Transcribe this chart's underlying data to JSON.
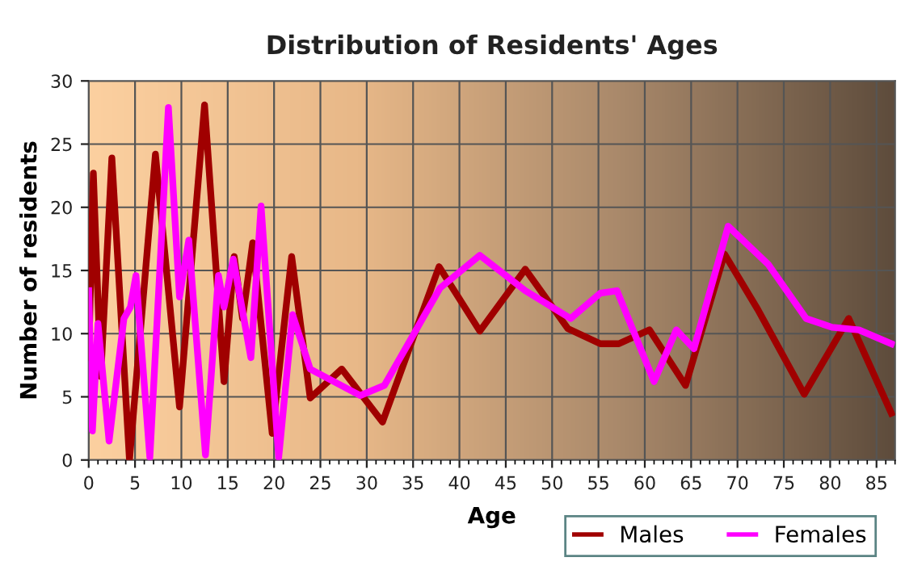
{
  "chart_data": {
    "type": "line",
    "title": "Distribution of Residents' Ages",
    "xlabel": "Age",
    "ylabel": "Number of residents",
    "xlim": [
      0,
      87
    ],
    "xticks": [
      0,
      5,
      10,
      15,
      20,
      25,
      30,
      35,
      40,
      45,
      50,
      55,
      60,
      65,
      70,
      75,
      80,
      85
    ],
    "ylim": [
      0,
      30
    ],
    "yticks": [
      0,
      5,
      10,
      15,
      20,
      25,
      30
    ],
    "grid": true,
    "legend": "bottom right",
    "marker": "none",
    "line_style": "solid",
    "series": [
      {
        "name": "Males",
        "color": "#a00000",
        "x": [
          0,
          0.5,
          1.3,
          2.5,
          4.4,
          7.2,
          9.8,
          12.5,
          14.6,
          15.7,
          16.6,
          17.7,
          19.8,
          21.9,
          23.9,
          27.3,
          31.7,
          37.8,
          42.2,
          47.1,
          51.7,
          55.2,
          57.2,
          60.5,
          64.4,
          68.6,
          72.2,
          77.2,
          82,
          86.6
        ],
        "values": [
          8.1,
          22.7,
          6.6,
          23.9,
          0,
          24.2,
          4.2,
          28.1,
          6.2,
          16.1,
          11.2,
          17.2,
          2.1,
          16.1,
          4.9,
          7.2,
          3.0,
          15.3,
          10.2,
          15.1,
          10.4,
          9.2,
          9.2,
          10.3,
          5.9,
          16.3,
          11.9,
          5.2,
          11.2,
          3.7
        ]
      },
      {
        "name": "Females",
        "color": "#ff00ff",
        "x": [
          0,
          0.4,
          1.0,
          2.2,
          3.8,
          4.5,
          5.1,
          6.6,
          8.6,
          9.8,
          10.8,
          12.6,
          14.0,
          14.6,
          15.6,
          17.5,
          18.6,
          20.5,
          22.0,
          23.9,
          29.3,
          31.9,
          37.9,
          42.2,
          47.1,
          52.0,
          55.2,
          57.0,
          61.0,
          63.4,
          65.3,
          69.0,
          73.3,
          77.4,
          80.2,
          83.1,
          86.6
        ],
        "values": [
          13.4,
          2.3,
          10.8,
          1.5,
          11.2,
          12.1,
          14.6,
          0.2,
          27.9,
          12.9,
          17.4,
          0.4,
          14.6,
          12.1,
          15.9,
          8.1,
          20.1,
          0.2,
          11.5,
          7.2,
          5.1,
          5.9,
          13.6,
          16.2,
          13.4,
          11.2,
          13.2,
          13.4,
          6.2,
          10.3,
          8.8,
          18.5,
          15.5,
          11.2,
          10.5,
          10.3,
          9.2
        ]
      }
    ]
  }
}
